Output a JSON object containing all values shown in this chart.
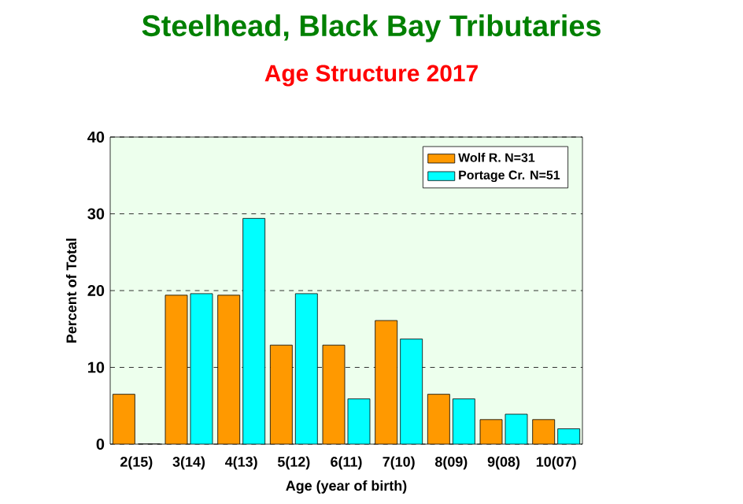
{
  "chart_data": {
    "type": "bar",
    "title": "Steelhead, Black Bay Tributaries",
    "subtitle": "Age Structure 2017",
    "xlabel": "Age (year of birth)",
    "ylabel": "Percent of Total",
    "categories": [
      "2(15)",
      "3(14)",
      "4(13)",
      "5(12)",
      "6(11)",
      "7(10)",
      "8(09)",
      "9(08)",
      "10(07)"
    ],
    "series": [
      {
        "name": "Wolf R. N=31",
        "color": "#ff9900",
        "values": [
          6.5,
          19.4,
          19.4,
          12.9,
          12.9,
          16.1,
          6.5,
          3.2,
          3.2
        ]
      },
      {
        "name": "Portage Cr. N=51",
        "color": "#00ffff",
        "values": [
          0,
          19.6,
          29.4,
          19.6,
          5.9,
          13.7,
          5.9,
          3.9,
          2.0
        ]
      }
    ],
    "ylim": [
      0,
      40
    ],
    "yticks": [
      0,
      10,
      20,
      30,
      40
    ],
    "grid": "y",
    "legend": "top right"
  }
}
